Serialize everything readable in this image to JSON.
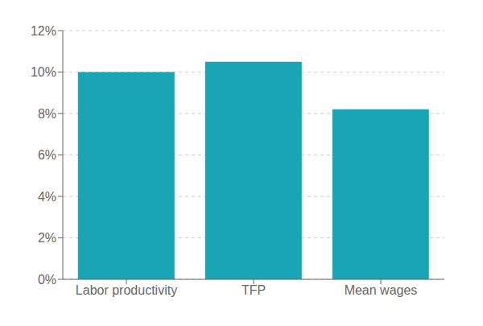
{
  "chart_data": {
    "type": "bar",
    "categories": [
      "Labor productivity",
      "TFP",
      "Mean wages"
    ],
    "values": [
      10.0,
      10.5,
      8.2
    ],
    "color": "#1aa5b5",
    "ylim": [
      0,
      12
    ],
    "yticks": [
      {
        "value": 0,
        "label": "0%"
      },
      {
        "value": 2,
        "label": "2%"
      },
      {
        "value": 4,
        "label": "4%"
      },
      {
        "value": 6,
        "label": "6%"
      },
      {
        "value": 8,
        "label": "8%"
      },
      {
        "value": 10,
        "label": "10%"
      },
      {
        "value": 12,
        "label": "12%"
      }
    ],
    "grid": true
  }
}
